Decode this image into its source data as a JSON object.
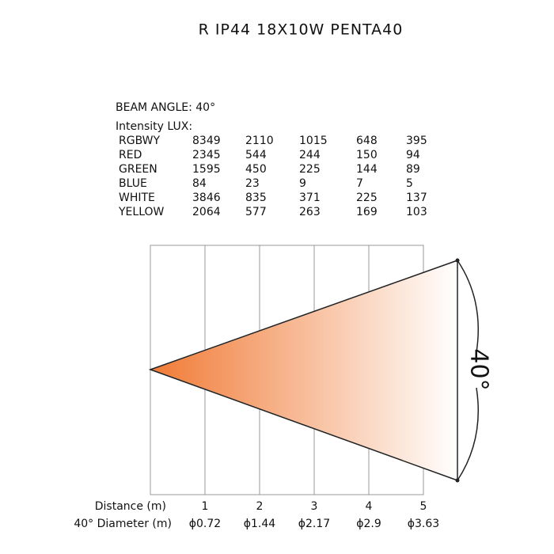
{
  "title": "R IP44 18X10W PENTA40",
  "beam_angle": "BEAM ANGLE: 40°",
  "intensity_label": "Intensity LUX:",
  "table": {
    "rows": [
      {
        "name": "RGBWY",
        "values": [
          8349,
          2110,
          1015,
          648,
          395
        ]
      },
      {
        "name": "RED",
        "values": [
          2345,
          544,
          244,
          150,
          94
        ]
      },
      {
        "name": "GREEN",
        "values": [
          1595,
          450,
          225,
          144,
          89
        ]
      },
      {
        "name": "BLUE",
        "values": [
          84,
          23,
          9,
          7,
          5
        ]
      },
      {
        "name": "WHITE",
        "values": [
          3846,
          835,
          371,
          225,
          137
        ]
      },
      {
        "name": "YELLOW",
        "values": [
          2064,
          577,
          263,
          169,
          103
        ]
      }
    ]
  },
  "distance_label": "Distance (m)",
  "distances": [
    1,
    2,
    3,
    4,
    5
  ],
  "diameter_label": "40° Diameter (m)",
  "diameters": [
    "ϕ0.72",
    "ϕ1.44",
    "ϕ2.17",
    "ϕ2.9",
    "ϕ3.63"
  ],
  "angle_label": "40°"
}
